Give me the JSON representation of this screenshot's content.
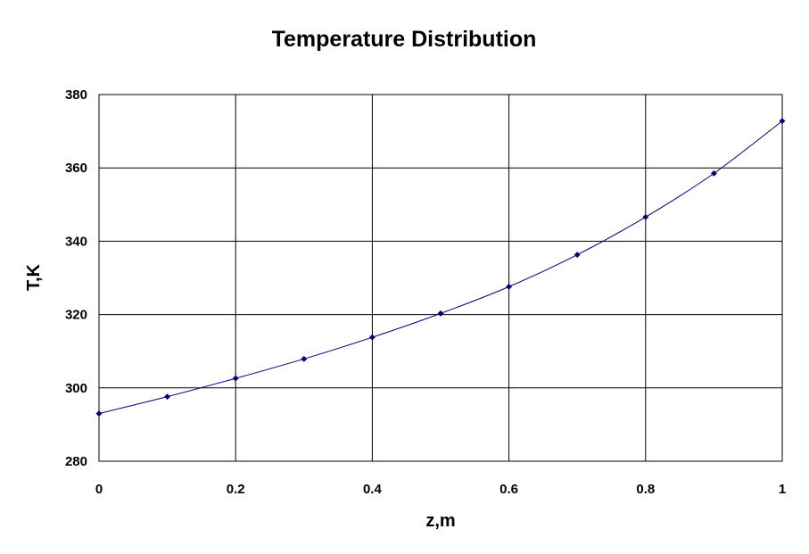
{
  "chart_data": {
    "type": "line",
    "title": "Temperature Distribution",
    "xlabel": "z,m",
    "ylabel": "T,K",
    "xlim": [
      0,
      1
    ],
    "ylim": [
      280,
      380
    ],
    "x_ticks": [
      "0",
      "0.2",
      "0.4",
      "0.6",
      "0.8",
      "1"
    ],
    "y_ticks": [
      "280",
      "300",
      "320",
      "340",
      "360",
      "380"
    ],
    "grid": true,
    "legend": false,
    "series": [
      {
        "x": [
          0,
          0.1,
          0.2,
          0.3,
          0.4,
          0.5,
          0.6,
          0.7,
          0.8,
          0.9,
          1.0
        ],
        "y": [
          293.0,
          297.6,
          302.6,
          307.9,
          313.8,
          320.3,
          327.6,
          336.3,
          346.6,
          358.5,
          372.8
        ],
        "color": "#000080",
        "marker": "diamond"
      }
    ]
  }
}
